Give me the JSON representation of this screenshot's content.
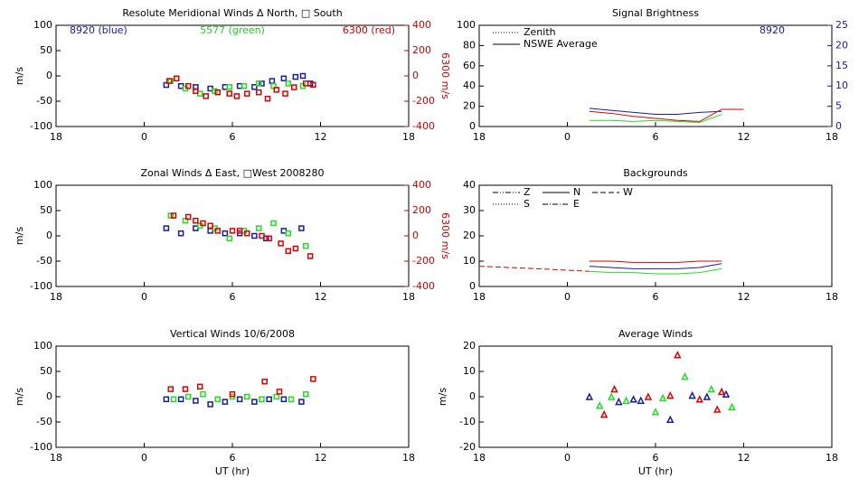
{
  "chart_data": [
    {
      "type": "scatter",
      "marker": "square",
      "title": "Resolute Meridional Winds Δ North, □ South",
      "ylabel": "m/s",
      "y2label": "6300 m/s",
      "y2color": "#cc0000",
      "xlim": [
        -6,
        18
      ],
      "xticks": [
        {
          "value": -6,
          "label": "18"
        },
        0,
        6,
        12,
        18
      ],
      "ylim": [
        -100,
        100
      ],
      "yticks": [
        -100,
        -50,
        0,
        50,
        100
      ],
      "y2lim": [
        -400,
        400
      ],
      "y2ticks": [
        -400,
        -200,
        0,
        200,
        400
      ],
      "annotations": [
        {
          "text": "8920 (blue)",
          "color": "#1a1aa0"
        },
        {
          "text": "5577 (green)",
          "color": "#22cc22"
        },
        {
          "text": "6300 (red)",
          "color": "#cc0000"
        }
      ],
      "series": [
        {
          "color": "#1a1aa0",
          "x": [
            1.5,
            2.5,
            3.5,
            4.5,
            5.5,
            6.5,
            7.5,
            8,
            8.7,
            9.5,
            10.3,
            10.8,
            11.3
          ],
          "values": [
            -18,
            -20,
            -22,
            -25,
            -22,
            -20,
            -22,
            -15,
            -10,
            -5,
            -2,
            0,
            -15
          ]
        },
        {
          "color": "#22dd22",
          "x": [
            1.8,
            2.8,
            3.8,
            4.8,
            5.8,
            6.8,
            7.8,
            8.8,
            9.8,
            10.8
          ],
          "values": [
            -10,
            -25,
            -35,
            -30,
            -22,
            -20,
            -15,
            -20,
            -15,
            -20
          ]
        },
        {
          "color": "#dd0000",
          "axis": "y2",
          "x": [
            1.7,
            2.2,
            3,
            3.5,
            4.2,
            5,
            5.8,
            6.3,
            7,
            7.8,
            8.4,
            9,
            9.6,
            10.2,
            11,
            11.5
          ],
          "values": [
            -40,
            -20,
            -80,
            -120,
            -160,
            -130,
            -140,
            -160,
            -140,
            -130,
            -180,
            -110,
            -140,
            -90,
            -60,
            -70
          ]
        }
      ]
    },
    {
      "type": "line",
      "title": "Signal Brightness",
      "y2color": "#1a1aa0",
      "xlim": [
        -6,
        18
      ],
      "xticks": [
        {
          "value": -6,
          "label": "18"
        },
        0,
        6,
        12,
        18
      ],
      "ylim": [
        0,
        100
      ],
      "yticks": [
        0,
        20,
        40,
        60,
        80,
        100
      ],
      "y2lim": [
        0,
        25
      ],
      "y2ticks": [
        0,
        5,
        10,
        15,
        20,
        25
      ],
      "annotations": [
        {
          "text": "8920",
          "color": "#1a1aa0"
        }
      ],
      "legend": [
        {
          "label": "Zenith",
          "dash": "dotted"
        },
        {
          "label": "NSWE Average",
          "dash": "solid"
        }
      ],
      "series": [
        {
          "color": "#1a1aa0",
          "x": [
            1.5,
            3,
            4.5,
            6,
            7.5,
            9,
            10.5
          ],
          "values": [
            18,
            16,
            14,
            12,
            12,
            14,
            15
          ]
        },
        {
          "color": "#dd0000",
          "x": [
            1.5,
            3,
            4.5,
            6,
            7.5,
            9,
            10.5,
            12
          ],
          "values": [
            15,
            13,
            10,
            8,
            6,
            5,
            17,
            17
          ]
        },
        {
          "color": "#22dd22",
          "x": [
            1.5,
            3,
            4.5,
            6,
            7.5,
            9,
            10.5
          ],
          "values": [
            6,
            6,
            5,
            6,
            5,
            4,
            12
          ]
        }
      ]
    },
    {
      "type": "scatter",
      "marker": "square",
      "title": "Zonal Winds Δ East, □West 2008280",
      "ylabel": "m/s",
      "y2label": "6300 m/s",
      "y2color": "#cc0000",
      "xlim": [
        -6,
        18
      ],
      "xticks": [
        {
          "value": -6,
          "label": "18"
        },
        0,
        6,
        12,
        18
      ],
      "ylim": [
        -100,
        100
      ],
      "yticks": [
        -100,
        -50,
        0,
        50,
        100
      ],
      "y2lim": [
        -400,
        400
      ],
      "y2ticks": [
        -400,
        -200,
        0,
        200,
        400
      ],
      "series": [
        {
          "color": "#1a1aa0",
          "x": [
            1.5,
            2.5,
            3.5,
            4.5,
            5.5,
            6.5,
            7.5,
            8.3,
            9.5,
            10.7
          ],
          "values": [
            15,
            5,
            15,
            10,
            5,
            5,
            0,
            -5,
            10,
            15
          ]
        },
        {
          "color": "#22dd22",
          "x": [
            1.8,
            2.8,
            3.8,
            4.8,
            5.8,
            6.8,
            7.8,
            8.8,
            9.8,
            11
          ],
          "values": [
            40,
            30,
            20,
            15,
            -5,
            10,
            15,
            25,
            5,
            -20
          ]
        },
        {
          "color": "#dd0000",
          "axis": "y2",
          "x": [
            2,
            3,
            3.5,
            4,
            4.5,
            5,
            6,
            6.5,
            7,
            8,
            8.5,
            9.3,
            9.8,
            10.3,
            11.3
          ],
          "values": [
            160,
            150,
            120,
            100,
            80,
            40,
            40,
            40,
            20,
            0,
            -20,
            -60,
            -120,
            -100,
            -160
          ]
        }
      ]
    },
    {
      "type": "line",
      "title": "Backgrounds",
      "xlim": [
        -6,
        18
      ],
      "xticks": [
        {
          "value": -6,
          "label": "18"
        },
        0,
        6,
        12,
        18
      ],
      "ylim": [
        0,
        40
      ],
      "yticks": [
        0,
        10,
        20,
        30,
        40
      ],
      "legend": [
        {
          "label": "Z",
          "dash": "dashdotdot"
        },
        {
          "label": "N",
          "dash": "solid"
        },
        {
          "label": "W",
          "dash": "dashed"
        },
        {
          "label": "S",
          "dash": "dotted"
        },
        {
          "label": "E",
          "dash": "dashdot"
        }
      ],
      "series": [
        {
          "color": "#dd0000",
          "dash": "dashed",
          "x": [
            -6,
            -2,
            1.5
          ],
          "values": [
            8,
            7,
            6
          ]
        },
        {
          "color": "#dd0000",
          "x": [
            1.5,
            3,
            4.5,
            6,
            7.5,
            9,
            10.5
          ],
          "values": [
            10,
            10,
            9.5,
            9.5,
            9.5,
            10,
            10
          ]
        },
        {
          "color": "#1a1aa0",
          "x": [
            1.5,
            3,
            4.5,
            6,
            7.5,
            9,
            10.5
          ],
          "values": [
            8,
            7.5,
            7,
            7,
            7,
            7.5,
            9
          ]
        },
        {
          "color": "#22dd22",
          "x": [
            1.5,
            3,
            4.5,
            6,
            7.5,
            9,
            10.5
          ],
          "values": [
            6,
            5.5,
            5.5,
            5,
            5,
            5.5,
            7
          ]
        }
      ]
    },
    {
      "type": "scatter",
      "marker": "square",
      "title": "Vertical Winds 10/6/2008",
      "ylabel": "m/s",
      "xlabel": "UT (hr)",
      "xlim": [
        -6,
        18
      ],
      "xticks": [
        {
          "value": -6,
          "label": "18"
        },
        0,
        6,
        12,
        18
      ],
      "ylim": [
        -100,
        100
      ],
      "yticks": [
        -100,
        -50,
        0,
        50,
        100
      ],
      "series": [
        {
          "color": "#1a1aa0",
          "x": [
            1.5,
            2.5,
            3.5,
            4.5,
            5.5,
            6.5,
            7.5,
            8.5,
            9.5,
            10.7
          ],
          "values": [
            -5,
            -5,
            -8,
            -15,
            -10,
            -5,
            -10,
            -5,
            -5,
            -10
          ]
        },
        {
          "color": "#22dd22",
          "x": [
            2,
            3,
            4,
            5,
            6,
            7,
            8,
            9,
            10,
            11
          ],
          "values": [
            -5,
            0,
            5,
            -5,
            0,
            0,
            -5,
            0,
            -5,
            5
          ]
        },
        {
          "color": "#dd0000",
          "x": [
            1.8,
            2.8,
            3.8,
            6,
            8.2,
            9.2,
            11.5
          ],
          "values": [
            15,
            15,
            20,
            5,
            30,
            10,
            35
          ]
        }
      ]
    },
    {
      "type": "scatter",
      "marker": "triangle",
      "title": "Average Winds",
      "ylabel": "m/s",
      "xlabel": "UT (hr)",
      "xlim": [
        -6,
        18
      ],
      "xticks": [
        {
          "value": -6,
          "label": "18"
        },
        0,
        6,
        12,
        18
      ],
      "ylim": [
        -20,
        20
      ],
      "yticks": [
        -20,
        -10,
        0,
        10,
        20
      ],
      "series": [
        {
          "color": "#1a1aa0",
          "x": [
            1.5,
            3.5,
            4.5,
            5,
            7,
            8.5,
            9.5,
            10.8
          ],
          "values": [
            0,
            -2,
            -1,
            -1.5,
            -9,
            0.5,
            0,
            1
          ]
        },
        {
          "color": "#22dd22",
          "x": [
            2.2,
            3,
            4,
            6,
            6.5,
            8,
            9.8,
            11.2
          ],
          "values": [
            -3.5,
            0,
            -1.5,
            -6,
            -0.5,
            8,
            3,
            -4
          ]
        },
        {
          "color": "#dd0000",
          "x": [
            2.5,
            3.2,
            5.5,
            7,
            7.5,
            9,
            10.2,
            10.5
          ],
          "values": [
            -7,
            3,
            0,
            0.5,
            16.5,
            -1,
            -5,
            2
          ]
        }
      ]
    }
  ]
}
